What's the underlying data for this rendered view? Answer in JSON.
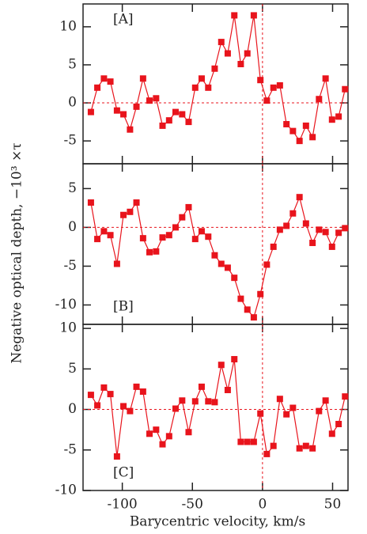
{
  "chart_data": [
    {
      "type": "line",
      "annotation": "[A]",
      "ylabel": "Negative optical depth, −10³ ×τ",
      "color": "#e8141c",
      "x": [
        -122.4,
        -117.8,
        -113.1,
        -108.5,
        -103.8,
        -99.2,
        -94.5,
        -89.9,
        -85.2,
        -80.6,
        -75.9,
        -71.3,
        -66.6,
        -62.0,
        -57.3,
        -52.7,
        -48.0,
        -43.4,
        -38.7,
        -34.1,
        -29.4,
        -24.8,
        -20.1,
        -15.5,
        -10.8,
        -6.2,
        -1.5,
        3.1,
        7.8,
        12.4,
        17.1,
        21.7,
        26.4,
        31.0,
        35.7,
        40.3,
        45.0,
        49.6,
        54.3,
        58.9
      ],
      "values": [
        -1.2,
        2,
        3.2,
        2.8,
        -1,
        -1.5,
        -3.5,
        -0.5,
        3.2,
        0.3,
        0.6,
        -3,
        -2.3,
        -1.2,
        -1.5,
        -2.5,
        2,
        3.2,
        2,
        4.5,
        8,
        6.5,
        11.5,
        5.1,
        6.5,
        11.5,
        3,
        0.3,
        2,
        2.3,
        -2.8,
        -3.7,
        -5,
        -3,
        -4.5,
        0.5,
        3.2,
        -2.2,
        -1.8,
        1.8
      ],
      "xlim": [
        -128,
        61
      ],
      "ylim": [
        -8,
        13
      ],
      "yticks": [
        -5,
        0,
        5,
        10
      ],
      "hline": 0,
      "vline": 0
    },
    {
      "type": "line",
      "annotation": "[B]",
      "color": "#e8141c",
      "x": [
        -122.4,
        -117.8,
        -113.1,
        -108.5,
        -103.8,
        -99.2,
        -94.5,
        -89.9,
        -85.2,
        -80.6,
        -75.9,
        -71.3,
        -66.6,
        -62.0,
        -57.3,
        -52.7,
        -48.0,
        -43.4,
        -38.7,
        -34.1,
        -29.4,
        -24.8,
        -20.1,
        -15.5,
        -10.8,
        -6.2,
        -1.5,
        3.1,
        7.8,
        12.4,
        17.1,
        21.7,
        26.4,
        31.0,
        35.7,
        40.3,
        45.0,
        49.6,
        54.3,
        58.9
      ],
      "values": [
        3.2,
        -1.5,
        -0.5,
        -1,
        -4.7,
        1.6,
        2,
        3.2,
        -1.4,
        -3.2,
        -3.1,
        -1.3,
        -1,
        0,
        1.3,
        2.6,
        -1.5,
        -0.5,
        -1.2,
        -3.6,
        -4.7,
        -5.2,
        -6.5,
        -9.2,
        -10.6,
        -11.6,
        -8.6,
        -4.8,
        -2.5,
        -0.3,
        0.2,
        1.8,
        3.9,
        0.5,
        -2,
        -0.3,
        -0.6,
        -2.5,
        -0.7,
        -0.1
      ],
      "xlim": [
        -128,
        61
      ],
      "ylim": [
        -12.5,
        8.2
      ],
      "yticks": [
        -10,
        -5,
        0,
        5
      ],
      "hline": 0,
      "vline": 0
    },
    {
      "type": "line",
      "annotation": "[C]",
      "xlabel": "Barycentric velocity, km/s",
      "color": "#e8141c",
      "x": [
        -122.4,
        -117.8,
        -113.1,
        -108.5,
        -103.8,
        -99.2,
        -94.5,
        -89.9,
        -85.2,
        -80.6,
        -75.9,
        -71.3,
        -66.6,
        -62.0,
        -57.3,
        -52.7,
        -48.0,
        -43.4,
        -38.7,
        -34.1,
        -29.4,
        -24.8,
        -20.1,
        -15.5,
        -10.8,
        -6.2,
        -1.5,
        3.1,
        7.8,
        12.4,
        17.1,
        21.7,
        26.4,
        31.0,
        35.7,
        40.3,
        45.0,
        49.6,
        54.3,
        58.9
      ],
      "values": [
        1.8,
        0.5,
        2.7,
        1.9,
        -5.8,
        0.4,
        -0.2,
        2.8,
        2.2,
        -3,
        -2.5,
        -4.3,
        -3.3,
        0.1,
        1.1,
        -2.8,
        1,
        2.8,
        1,
        0.9,
        5.5,
        2.4,
        6.2,
        -4,
        -4,
        -4,
        -0.5,
        -5.5,
        -4.5,
        1.3,
        -0.6,
        0.2,
        -4.8,
        -4.5,
        -4.8,
        -0.2,
        1.1,
        -3,
        -1.8,
        1.6
      ],
      "xlim": [
        -128,
        61
      ],
      "ylim": [
        -10,
        10.5
      ],
      "xticks": [
        -100,
        -50,
        0,
        50
      ],
      "yticks": [
        -10,
        -5,
        0,
        5,
        10
      ],
      "hline": 0,
      "vline": 0
    }
  ]
}
